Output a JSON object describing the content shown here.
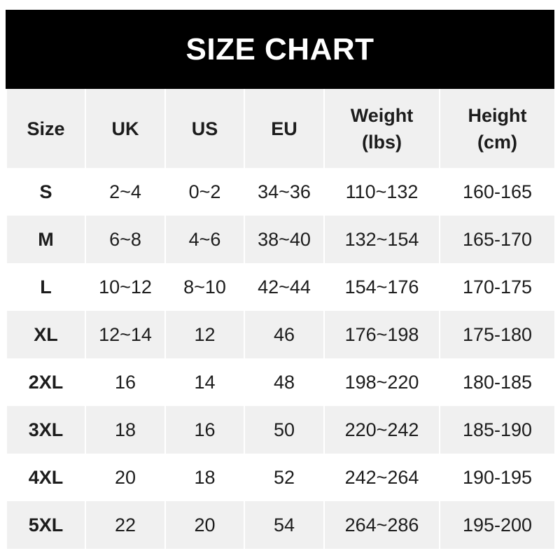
{
  "title": "SIZE CHART",
  "columns": [
    "Size",
    "UK",
    "US",
    "EU",
    "Weight\n(lbs)",
    "Height\n(cm)"
  ],
  "column_lines": [
    [
      "Size"
    ],
    [
      "UK"
    ],
    [
      "US"
    ],
    [
      "EU"
    ],
    [
      "Weight",
      "(lbs)"
    ],
    [
      "Height",
      "(cm)"
    ]
  ],
  "rows": [
    [
      "S",
      "2~4",
      "0~2",
      "34~36",
      "110~132",
      "160-165"
    ],
    [
      "M",
      "6~8",
      "4~6",
      "38~40",
      "132~154",
      "165-170"
    ],
    [
      "L",
      "10~12",
      "8~10",
      "42~44",
      "154~176",
      "170-175"
    ],
    [
      "XL",
      "12~14",
      "12",
      "46",
      "176~198",
      "175-180"
    ],
    [
      "2XL",
      "16",
      "14",
      "48",
      "198~220",
      "180-185"
    ],
    [
      "3XL",
      "18",
      "16",
      "50",
      "220~242",
      "185-190"
    ],
    [
      "4XL",
      "20",
      "18",
      "52",
      "242~264",
      "190-195"
    ],
    [
      "5XL",
      "22",
      "20",
      "54",
      "264~286",
      "195-200"
    ]
  ],
  "colors": {
    "header_bg": "#000000",
    "stripe": "#f0f0f0",
    "text": "#1c1c1c"
  }
}
